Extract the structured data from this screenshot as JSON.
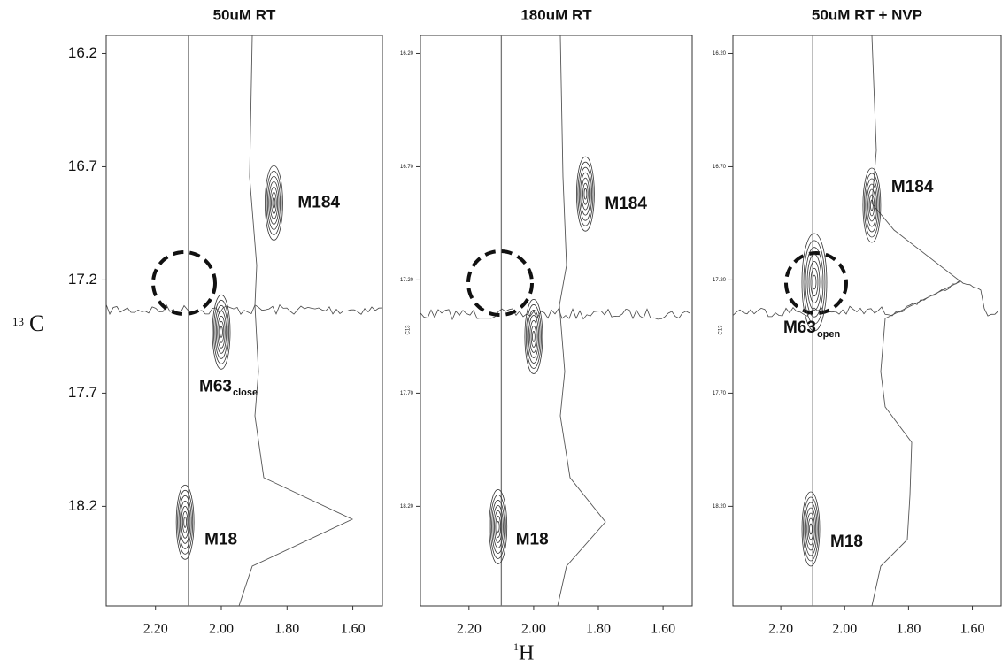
{
  "figure": {
    "y_label_sup": "13",
    "y_label": "C",
    "x_label_sup": "1",
    "x_label": "H"
  },
  "chart_data": [
    {
      "type": "contour",
      "title": "50uM RT",
      "xlim": [
        2.35,
        1.51
      ],
      "ylim": [
        16.12,
        18.64
      ],
      "xticks": [
        {
          "value": 2.2,
          "label": "2.20"
        },
        {
          "value": 2.0,
          "label": "2.00"
        },
        {
          "value": 1.8,
          "label": "1.80"
        },
        {
          "value": 1.6,
          "label": "1.60"
        }
      ],
      "yticks": [
        16.2,
        16.7,
        17.2,
        17.7,
        18.2
      ],
      "reference_x": 2.1,
      "peaks": [
        {
          "label": "M184",
          "x": 1.84,
          "y": 16.86
        },
        {
          "label": "M63",
          "subscript": "close",
          "x": 2.0,
          "y": 17.43
        },
        {
          "label": "M18",
          "x": 2.11,
          "y": 18.27
        }
      ]
    },
    {
      "type": "contour",
      "title": "180uM RT",
      "ylabel": "C13",
      "xlim": [
        2.35,
        1.51
      ],
      "ylim": [
        16.12,
        18.64
      ],
      "xticks": [
        {
          "value": 2.2,
          "label": "2.20"
        },
        {
          "value": 2.0,
          "label": "2.00"
        },
        {
          "value": 1.8,
          "label": "1.80"
        },
        {
          "value": 1.6,
          "label": "1.60"
        }
      ],
      "yticks": [
        {
          "value": 16.2,
          "label": "16.20"
        },
        {
          "value": 16.7,
          "label": "16.70"
        },
        {
          "value": 17.2,
          "label": "17.20"
        },
        {
          "value": 17.7,
          "label": "17.70"
        },
        {
          "value": 18.2,
          "label": "18.20"
        }
      ],
      "reference_x": 2.1,
      "peaks": [
        {
          "label": "M184",
          "x": 1.84,
          "y": 16.82
        },
        {
          "x": 2.0,
          "y": 17.45
        },
        {
          "label": "M18",
          "x": 2.11,
          "y": 18.29
        }
      ]
    },
    {
      "type": "contour",
      "title": "50uM RT + NVP",
      "ylabel": "C13",
      "xlim": [
        2.35,
        1.51
      ],
      "ylim": [
        16.12,
        18.64
      ],
      "xticks": [
        {
          "value": 2.2,
          "label": "2.20"
        },
        {
          "value": 2.0,
          "label": "2.00"
        },
        {
          "value": 1.8,
          "label": "1.80"
        },
        {
          "value": 1.6,
          "label": "1.60"
        }
      ],
      "yticks": [
        {
          "value": 16.2,
          "label": "16.20"
        },
        {
          "value": 16.7,
          "label": "16.70"
        },
        {
          "value": 17.2,
          "label": "17.20"
        },
        {
          "value": 17.7,
          "label": "17.70"
        },
        {
          "value": 18.2,
          "label": "18.20"
        }
      ],
      "reference_x": 2.1,
      "peaks": [
        {
          "label": "M184",
          "x": 1.915,
          "y": 16.87
        },
        {
          "label": "M63",
          "subscript": "open",
          "x": 2.095,
          "y": 17.21
        },
        {
          "label": "M18",
          "x": 2.106,
          "y": 18.3
        }
      ]
    }
  ]
}
